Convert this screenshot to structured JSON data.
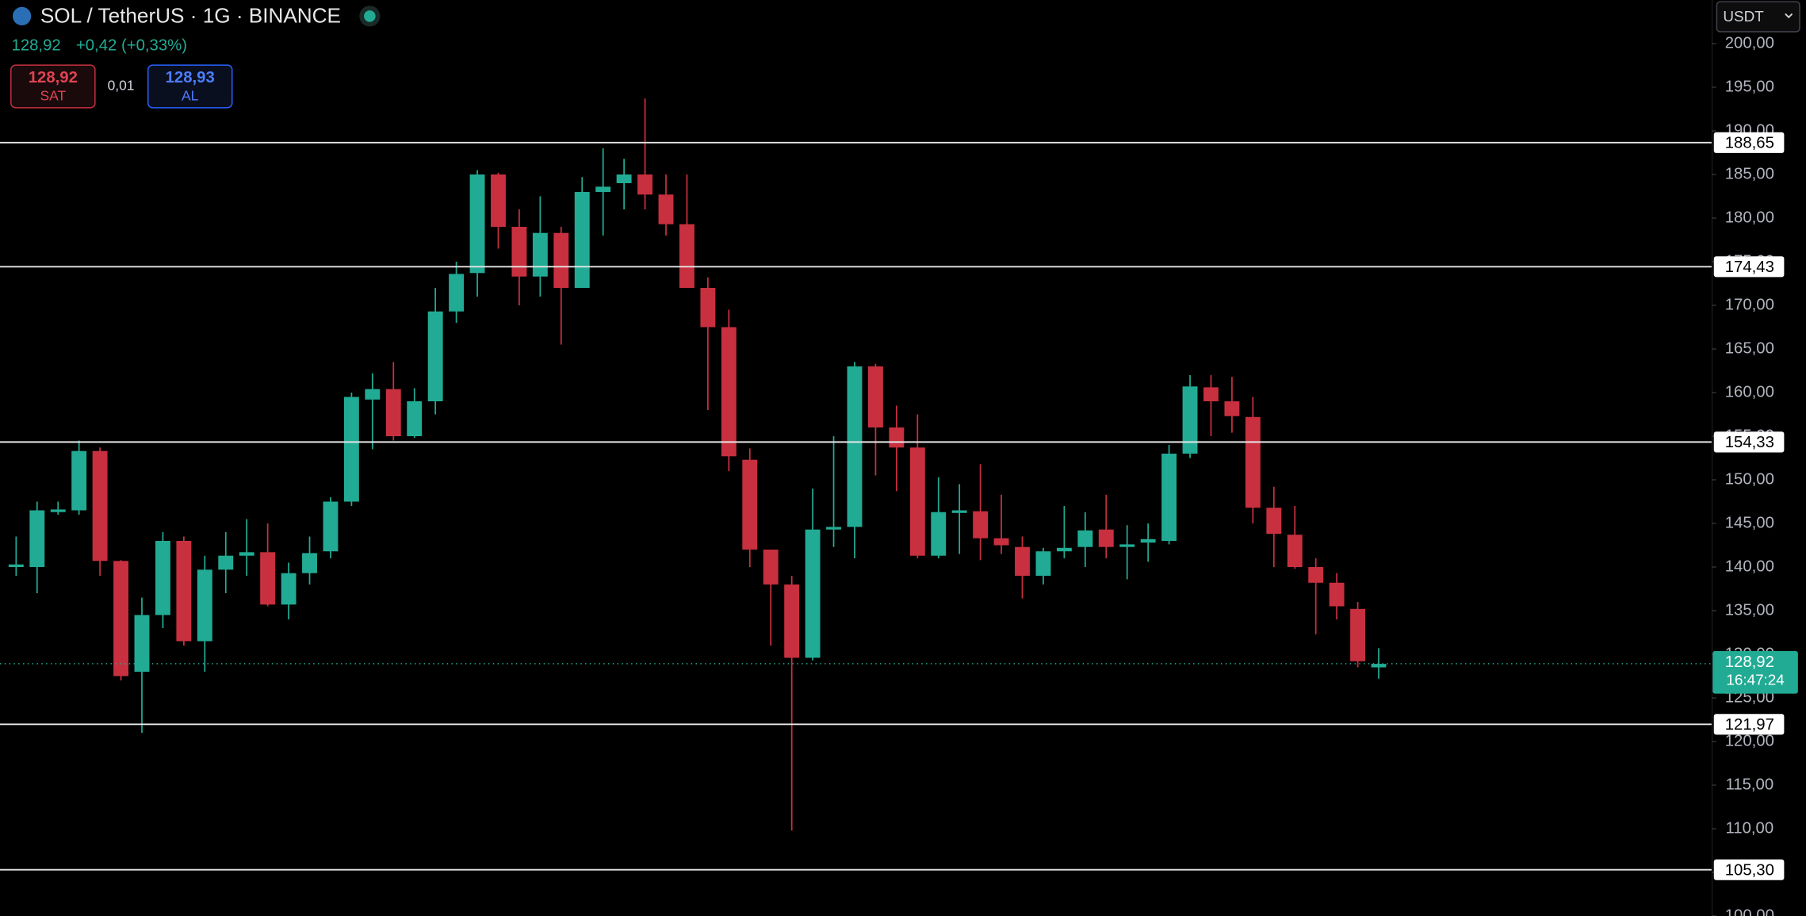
{
  "chart_data": {
    "type": "candlestick",
    "title": "SOL / TetherUS · 1G · BINANCE",
    "last_price": "128,92",
    "change": "+0,42 (+0,33%)",
    "sell_price": "128,92",
    "sell_label": "SAT",
    "spread": "0,01",
    "buy_price": "128,93",
    "buy_label": "AL",
    "currency": "USDT",
    "up_color": "#22ab94",
    "down_color": "#c8303f",
    "ylim": [
      100,
      205
    ],
    "yticks": [
      {
        "value": 100,
        "label": "100,00"
      },
      {
        "value": 105,
        "label": "105,00"
      },
      {
        "value": 110,
        "label": "110,00"
      },
      {
        "value": 115,
        "label": "115,00"
      },
      {
        "value": 120,
        "label": "120,00"
      },
      {
        "value": 125,
        "label": "125,00"
      },
      {
        "value": 130,
        "label": "130,00"
      },
      {
        "value": 135,
        "label": "135,00"
      },
      {
        "value": 140,
        "label": "140,00"
      },
      {
        "value": 145,
        "label": "145,00"
      },
      {
        "value": 150,
        "label": "150,00"
      },
      {
        "value": 155,
        "label": "155,00"
      },
      {
        "value": 160,
        "label": "160,00"
      },
      {
        "value": 165,
        "label": "165,00"
      },
      {
        "value": 170,
        "label": "170,00"
      },
      {
        "value": 175,
        "label": "175,00"
      },
      {
        "value": 180,
        "label": "180,00"
      },
      {
        "value": 185,
        "label": "185,00"
      },
      {
        "value": 190,
        "label": "190,00"
      },
      {
        "value": 195,
        "label": "195,00"
      },
      {
        "value": 200,
        "label": "200,00"
      }
    ],
    "levels": [
      {
        "value": 188.65,
        "label": "188,65"
      },
      {
        "value": 174.43,
        "label": "174,43"
      },
      {
        "value": 154.33,
        "label": "154,33"
      },
      {
        "value": 121.97,
        "label": "121,97"
      },
      {
        "value": 105.3,
        "label": "105,30"
      }
    ],
    "price_line": {
      "value": 128.92,
      "label": "128,92",
      "countdown": "16:47:24"
    },
    "open": [
      140,
      140,
      146.3,
      146.5,
      153.3,
      140.7,
      128,
      134.5,
      143,
      131.5,
      139.7,
      141.3,
      141.7,
      135.7,
      139.3,
      141.8,
      147.5,
      159.2,
      160.4,
      155,
      159,
      169.3,
      173.7,
      185,
      179,
      173.3,
      178.3,
      172,
      183,
      184,
      185,
      182.7,
      179.3,
      172,
      167.5,
      152.3,
      142,
      138,
      129.6,
      144.3,
      144.6,
      163,
      156,
      153.7,
      141.3,
      146.2,
      146.4,
      143.3,
      142.3,
      139,
      141.8,
      142.3,
      144.3,
      142.3,
      142.8,
      143,
      153,
      160.6,
      159,
      157.2,
      146.8,
      143.7,
      140,
      138.2,
      135.2,
      128.5
    ],
    "high": [
      143.5,
      147.5,
      147.5,
      154.5,
      153.7,
      140.8,
      136.5,
      144,
      143.5,
      141.3,
      144,
      145.5,
      145,
      140.5,
      143.5,
      148,
      160,
      162.2,
      163.5,
      160.5,
      172,
      175,
      185.5,
      185.2,
      181,
      182.5,
      179,
      184.7,
      188,
      186.8,
      193.7,
      185,
      185,
      173.2,
      169.5,
      153.6,
      142,
      139,
      149,
      155,
      163.5,
      163.3,
      158.5,
      157.5,
      150.3,
      149.5,
      151.8,
      148.3,
      143.5,
      142.2,
      147,
      146.3,
      148.3,
      144.8,
      145,
      154,
      162,
      162,
      161.8,
      159.5,
      149.2,
      147,
      141,
      139.3,
      136,
      130.7
    ],
    "low": [
      139,
      137,
      146,
      146,
      139,
      127,
      121,
      133,
      131,
      128,
      137,
      139,
      135.5,
      134,
      138,
      141,
      147,
      153.5,
      154.5,
      154.8,
      157.5,
      168,
      171,
      176.5,
      170,
      171,
      165.5,
      172,
      178,
      181,
      181,
      178,
      172,
      158,
      151,
      140,
      131,
      109.8,
      129.3,
      142.3,
      141,
      150.5,
      148.7,
      141,
      141,
      141.5,
      140.8,
      141.5,
      136.4,
      138,
      141,
      140,
      141,
      138.6,
      140.6,
      142.6,
      152.5,
      155,
      155.4,
      145,
      140,
      139.8,
      132.3,
      134,
      128.5,
      127.2
    ],
    "close": [
      140.3,
      146.5,
      146.6,
      153.3,
      140.7,
      127.5,
      134.5,
      143,
      131.5,
      139.7,
      141.3,
      141.7,
      135.7,
      139.3,
      141.6,
      147.5,
      159.5,
      160.4,
      155,
      159,
      169.3,
      173.6,
      185,
      179,
      173.3,
      178.3,
      172,
      183,
      183.6,
      185,
      182.7,
      179.3,
      172,
      167.5,
      152.7,
      142,
      138,
      129.6,
      144.3,
      144.6,
      163,
      156,
      153.7,
      141.3,
      146.3,
      146.5,
      143.3,
      142.5,
      139,
      141.8,
      142.2,
      144.2,
      142.3,
      142.6,
      143.2,
      153,
      160.7,
      159,
      157.3,
      146.8,
      143.8,
      140,
      138.2,
      135.5,
      129.2,
      128.9
    ]
  }
}
